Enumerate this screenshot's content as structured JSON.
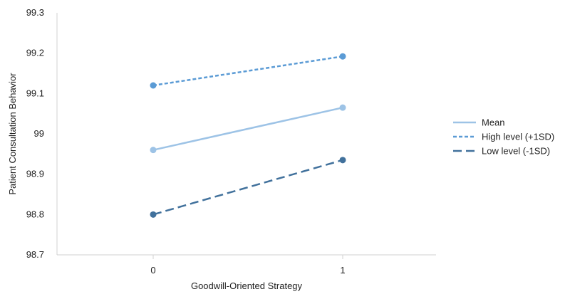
{
  "chart_data": {
    "type": "line",
    "title": "",
    "xlabel": "Goodwill-Oriented Strategy",
    "ylabel": "Patient Consultation Behavior",
    "categories": [
      "0",
      "1"
    ],
    "ylim": [
      98.7,
      99.3
    ],
    "yticks": [
      98.7,
      98.8,
      98.9,
      99,
      99.1,
      99.2,
      99.3
    ],
    "ytick_labels": [
      "98.7",
      "98.8",
      "98.9",
      "99",
      "99.1",
      "99.2",
      "99.3"
    ],
    "grid": false,
    "legend_position": "right",
    "series": [
      {
        "name": "Mean",
        "values": [
          98.96,
          99.065
        ],
        "color": "#9DC3E6",
        "dash": "solid"
      },
      {
        "name": "High level (+1SD)",
        "values": [
          99.12,
          99.192
        ],
        "color": "#5B9BD5",
        "dash": "dashed"
      },
      {
        "name": "Low level (-1SD)",
        "values": [
          98.8,
          98.935
        ],
        "color": "#41719C",
        "dash": "long-dashed"
      }
    ]
  }
}
